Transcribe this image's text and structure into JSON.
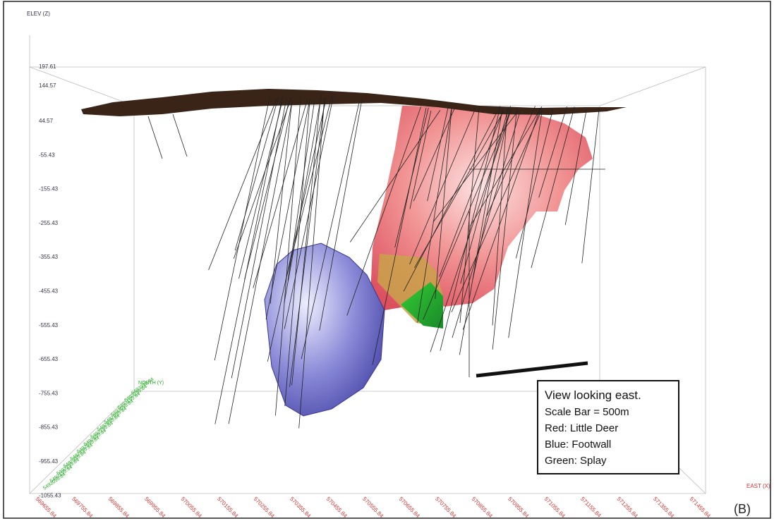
{
  "figure": {
    "z_axis_label": "ELEV (Z)",
    "x_axis_label": "EAST (X)",
    "y_axis_label": "NORTH (Y)",
    "z_ticks": [
      "197.61",
      "144.57",
      "44.57",
      "-55.43",
      "-155.43",
      "-255.43",
      "-355.43",
      "-455.43",
      "-555.43",
      "-655.43",
      "-755.43",
      "-855.43",
      "-955.43",
      "-1055.43"
    ],
    "x_ticks": [
      "569655.84",
      "569755.84",
      "569855.84",
      "569955.84",
      "570055.84",
      "570155.84",
      "570255.84",
      "570355.84",
      "570455.84",
      "570555.84",
      "570655.84",
      "570755.84",
      "570855.84",
      "570955.84",
      "571055.84",
      "571155.84",
      "571255.84",
      "571355.84",
      "571455.84"
    ],
    "y_ticks": [
      "5493355.84",
      "5493255.84",
      "5493155.84",
      "5493055.84",
      "5492955.84",
      "5492855.84",
      "5492755.84",
      "5492655.84",
      "5492555.84",
      "5492455.84",
      "5492355.84",
      "5492255.84",
      "5492155.84",
      "5492055.84"
    ],
    "legend": [
      "View looking east.",
      "Scale Bar = 500m",
      "Red: Little Deer",
      "Blue: Footwall",
      "Green: Splay"
    ],
    "panel_label": "(B)"
  }
}
